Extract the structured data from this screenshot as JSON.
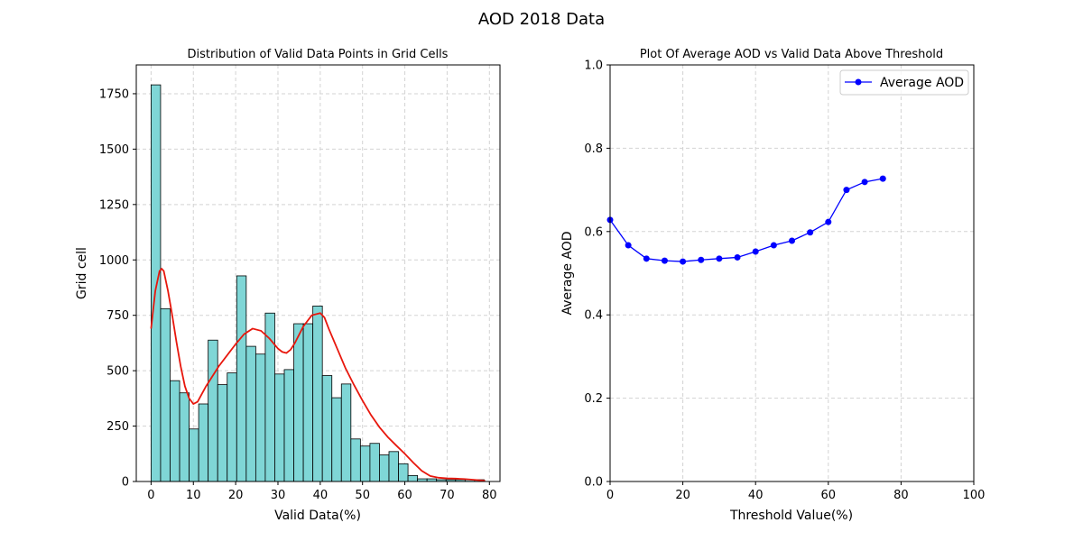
{
  "figure": {
    "suptitle": "AOD 2018 Data"
  },
  "chart_data": [
    {
      "type": "bar",
      "subtype": "histogram_with_kde",
      "title": "Distribution of Valid Data Points in Grid Cells",
      "xlabel": "Valid Data(%)",
      "ylabel": "Grid cell",
      "xlim": [
        -3.5,
        82.5
      ],
      "ylim": [
        0,
        1880
      ],
      "xticks": [
        0,
        10,
        20,
        30,
        40,
        50,
        60,
        70,
        80
      ],
      "yticks": [
        0,
        250,
        500,
        750,
        1000,
        1250,
        1500,
        1750
      ],
      "grid": true,
      "bin_width": 2.25,
      "bins_start": 0,
      "counts": [
        1790,
        780,
        455,
        400,
        237,
        350,
        638,
        437,
        490,
        928,
        610,
        575,
        760,
        485,
        505,
        712,
        712,
        792,
        478,
        378,
        440,
        192,
        160,
        172,
        120,
        135,
        80,
        27,
        12,
        12,
        8,
        8,
        8,
        8,
        8
      ],
      "bar_color": "#7fd6d6",
      "bar_edge_color": "#000000",
      "kde": {
        "color": "#e8170d",
        "x": [
          0,
          1,
          2,
          2.5,
          3,
          4,
          5,
          6,
          7,
          8,
          9,
          10,
          11,
          12,
          13,
          14,
          16,
          18,
          20,
          22,
          24,
          26,
          28,
          30,
          31,
          32,
          33,
          34,
          36,
          38,
          40,
          41,
          42,
          44,
          46,
          48,
          50,
          52,
          54,
          56,
          58,
          60,
          62,
          64,
          66,
          68,
          70,
          72,
          74,
          76,
          78,
          79
        ],
        "y": [
          690,
          860,
          950,
          960,
          950,
          860,
          750,
          630,
          520,
          430,
          375,
          350,
          360,
          395,
          430,
          460,
          520,
          570,
          620,
          665,
          690,
          680,
          645,
          600,
          585,
          580,
          595,
          625,
          700,
          750,
          760,
          740,
          690,
          600,
          510,
          435,
          365,
          300,
          245,
          200,
          162,
          125,
          85,
          48,
          25,
          17,
          14,
          13,
          11,
          8,
          5,
          3
        ]
      }
    },
    {
      "type": "line",
      "title": "Plot Of Average AOD vs Valid Data Above Threshold",
      "xlabel": "Threshold Value(%)",
      "ylabel": "Average AOD",
      "xlim": [
        0,
        100
      ],
      "ylim": [
        0,
        1.0
      ],
      "xticks": [
        0,
        20,
        40,
        60,
        80,
        100
      ],
      "yticks": [
        "0.0",
        "0.2",
        "0.4",
        "0.6",
        "0.8",
        "1.0"
      ],
      "grid": true,
      "legend": {
        "position": "top-right"
      },
      "series": [
        {
          "name": "Average AOD",
          "color": "#0000ff",
          "marker": "circle",
          "x": [
            0,
            5,
            10,
            15,
            20,
            25,
            30,
            35,
            40,
            45,
            50,
            55,
            60,
            65,
            70,
            75
          ],
          "y": [
            0.628,
            0.567,
            0.535,
            0.53,
            0.528,
            0.532,
            0.535,
            0.538,
            0.552,
            0.567,
            0.578,
            0.598,
            0.623,
            0.7,
            0.719,
            0.727
          ]
        }
      ]
    }
  ]
}
